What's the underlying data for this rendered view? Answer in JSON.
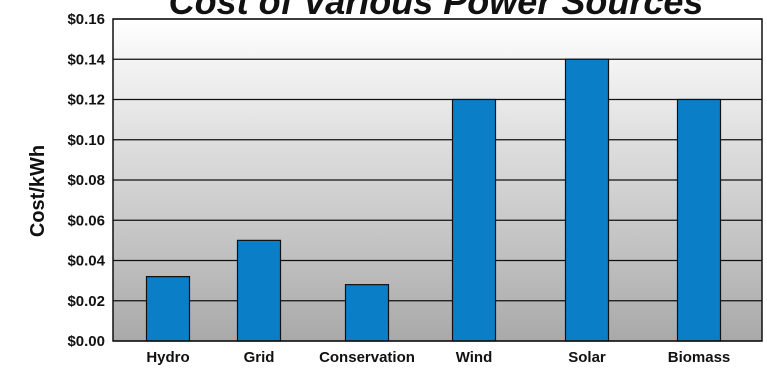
{
  "chart_data": {
    "type": "bar",
    "title": "Cost of Various Power Sources",
    "ylabel": "Cost/kWh",
    "xlabel": "",
    "categories": [
      "Hydro",
      "Grid",
      "Conservation",
      "Wind",
      "Solar",
      "Biomass"
    ],
    "values": [
      0.032,
      0.05,
      0.028,
      0.12,
      0.14,
      0.12
    ],
    "ylim": [
      0,
      0.16
    ],
    "yticks": [
      0.0,
      0.02,
      0.04,
      0.06,
      0.08,
      0.1,
      0.12,
      0.14,
      0.16
    ],
    "ytick_labels": [
      "$0.00",
      "$0.02",
      "$0.04",
      "$0.06",
      "$0.08",
      "$0.10",
      "$0.12",
      "$0.14",
      "$0.16"
    ],
    "grid": true,
    "bar_color": "#0a7fc8",
    "background_gradient": [
      "#ffffff",
      "#a9a9a9"
    ]
  }
}
